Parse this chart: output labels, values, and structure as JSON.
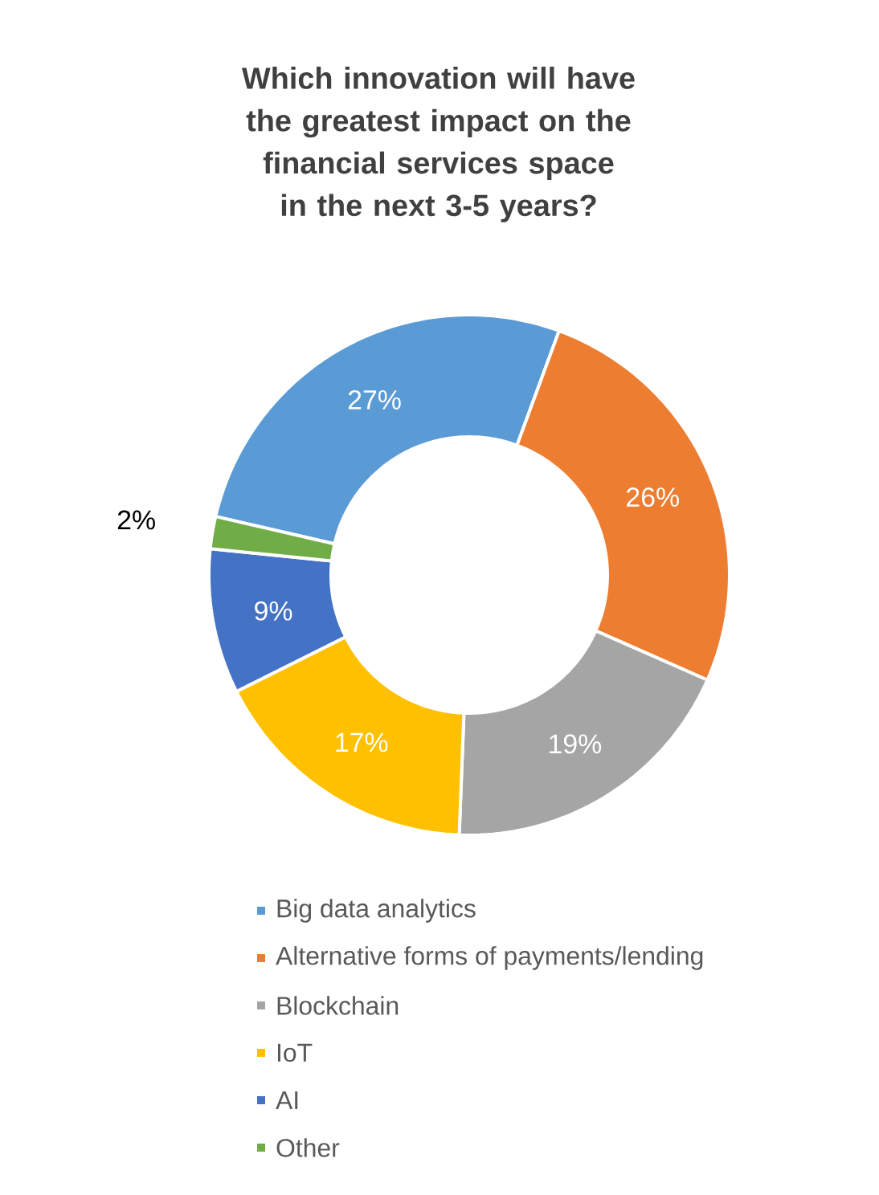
{
  "chart_data": {
    "type": "donut",
    "title": "Which innovation will have the greatest impact on the financial services space in the next 3-5 years?",
    "categories": [
      "Big data analytics",
      "Alternative forms of payments/lending",
      "Blockchain",
      "IoT",
      "AI",
      "Other"
    ],
    "values": [
      27,
      26,
      19,
      17,
      9,
      2
    ],
    "value_labels": [
      "27%",
      "26%",
      "19%",
      "17%",
      "9%",
      "2%"
    ],
    "colors": [
      "#5b9bd5",
      "#ed7d31",
      "#a5a5a5",
      "#ffc000",
      "#4472c4",
      "#70ad47"
    ],
    "legend": "bottom"
  }
}
